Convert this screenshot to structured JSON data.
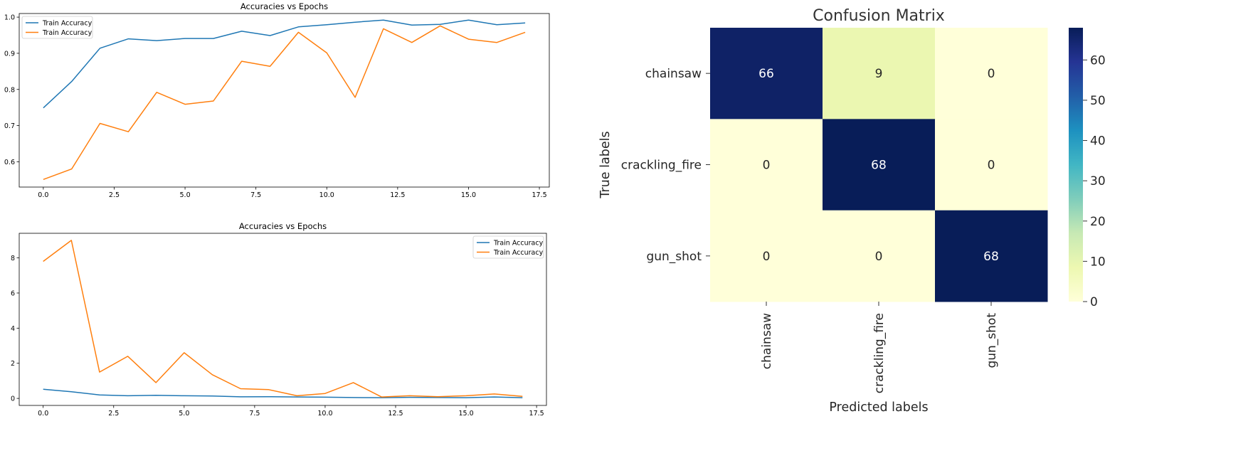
{
  "colors": {
    "series1": "#1f77b4",
    "series2": "#ff7f0e"
  },
  "chart_data": [
    {
      "type": "line",
      "title": "Accuracies vs Epochs",
      "xlabel": "",
      "ylabel": "",
      "x": [
        0,
        1,
        2,
        3,
        4,
        5,
        6,
        7,
        8,
        9,
        10,
        11,
        12,
        13,
        14,
        15,
        16,
        17
      ],
      "xlim": [
        -0.85,
        17.85
      ],
      "ylim": [
        0.53,
        1.01
      ],
      "xticks": [
        0.0,
        2.5,
        5.0,
        7.5,
        10.0,
        12.5,
        15.0,
        17.5
      ],
      "xtick_labels": [
        "0.0",
        "2.5",
        "5.0",
        "7.5",
        "10.0",
        "12.5",
        "15.0",
        "17.5"
      ],
      "yticks": [
        0.6,
        0.7,
        0.8,
        0.9,
        1.0
      ],
      "ytick_labels": [
        "0.6",
        "0.7",
        "0.8",
        "0.9",
        "1.0"
      ],
      "legend_loc": "upper left",
      "series": [
        {
          "name": "Train Accuracy",
          "color": "#1f77b4",
          "values": [
            0.749,
            0.822,
            0.914,
            0.94,
            0.935,
            0.941,
            0.941,
            0.961,
            0.949,
            0.973,
            0.979,
            0.986,
            0.992,
            0.978,
            0.98,
            0.992,
            0.979,
            0.984
          ]
        },
        {
          "name": "Train Accuracy",
          "color": "#ff7f0e",
          "values": [
            0.551,
            0.58,
            0.706,
            0.683,
            0.792,
            0.759,
            0.768,
            0.878,
            0.864,
            0.958,
            0.901,
            0.778,
            0.968,
            0.93,
            0.976,
            0.939,
            0.93,
            0.958
          ]
        }
      ]
    },
    {
      "type": "line",
      "title": "Accuracies vs Epochs",
      "xlabel": "",
      "ylabel": "",
      "x": [
        0,
        1,
        2,
        3,
        4,
        5,
        6,
        7,
        8,
        9,
        10,
        11,
        12,
        13,
        14,
        15,
        16,
        17
      ],
      "xlim": [
        -0.85,
        17.85
      ],
      "ylim": [
        -0.4,
        9.4
      ],
      "xticks": [
        0.0,
        2.5,
        5.0,
        7.5,
        10.0,
        12.5,
        15.0,
        17.5
      ],
      "xtick_labels": [
        "0.0",
        "2.5",
        "5.0",
        "7.5",
        "10.0",
        "12.5",
        "15.0",
        "17.5"
      ],
      "yticks": [
        0,
        2,
        4,
        6,
        8
      ],
      "ytick_labels": [
        "0",
        "2",
        "4",
        "6",
        "8"
      ],
      "legend_loc": "upper right",
      "series": [
        {
          "name": "Train Accuracy",
          "color": "#1f77b4",
          "values": [
            0.52,
            0.38,
            0.2,
            0.15,
            0.18,
            0.15,
            0.14,
            0.09,
            0.1,
            0.08,
            0.07,
            0.05,
            0.04,
            0.06,
            0.05,
            0.04,
            0.08,
            0.04
          ]
        },
        {
          "name": "Train Accuracy",
          "color": "#ff7f0e",
          "values": [
            7.8,
            9.0,
            1.5,
            2.4,
            0.9,
            2.6,
            1.35,
            0.55,
            0.5,
            0.15,
            0.28,
            0.9,
            0.08,
            0.15,
            0.1,
            0.15,
            0.25,
            0.12
          ]
        }
      ]
    },
    {
      "type": "heatmap",
      "title": "Confusion Matrix",
      "xlabel": "Predicted labels",
      "ylabel": "True labels",
      "rows": [
        "chainsaw",
        "crackling_fire",
        "gun_shot"
      ],
      "cols": [
        "chainsaw",
        "crackling_fire",
        "gun_shot"
      ],
      "values": [
        [
          66,
          9,
          0
        ],
        [
          0,
          68,
          0
        ],
        [
          0,
          0,
          68
        ]
      ],
      "vmin": 0,
      "vmax": 68,
      "colorbar_ticks": [
        0,
        10,
        20,
        30,
        40,
        50,
        60
      ],
      "colormap": "YlGnBu"
    }
  ]
}
